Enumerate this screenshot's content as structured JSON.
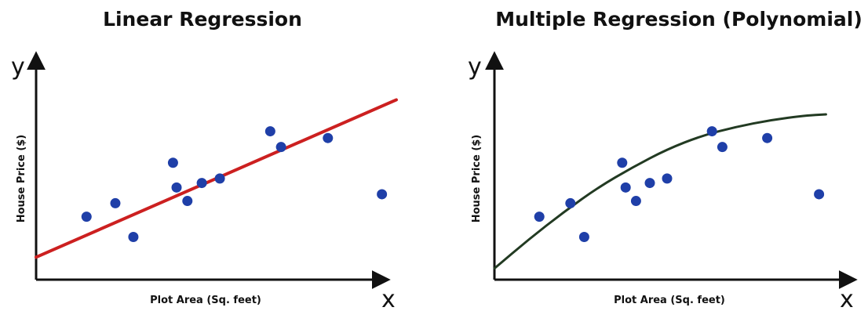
{
  "chart_data": [
    {
      "type": "scatter",
      "title": "Linear Regression",
      "xlabel": "Plot Area (Sq. feet)",
      "ylabel": "House Price ($)",
      "x_axis_letter": "x",
      "y_axis_letter": "y",
      "xlim": [
        0,
        10
      ],
      "ylim": [
        0,
        10
      ],
      "grid": false,
      "legend": "none",
      "point_color": "#1f3fa8",
      "fit_color": "#cc2020",
      "fit_type": "linear",
      "points": [
        {
          "x": 1.4,
          "y": 2.8
        },
        {
          "x": 2.2,
          "y": 3.4
        },
        {
          "x": 2.7,
          "y": 1.9
        },
        {
          "x": 3.8,
          "y": 5.2
        },
        {
          "x": 3.9,
          "y": 4.1
        },
        {
          "x": 4.2,
          "y": 3.5
        },
        {
          "x": 4.6,
          "y": 4.3
        },
        {
          "x": 5.1,
          "y": 4.5
        },
        {
          "x": 6.5,
          "y": 6.6
        },
        {
          "x": 6.8,
          "y": 5.9
        },
        {
          "x": 8.1,
          "y": 6.3
        },
        {
          "x": 9.6,
          "y": 3.8
        }
      ],
      "fit_line": [
        {
          "x": 0,
          "y": 1.0
        },
        {
          "x": 10,
          "y": 8.0
        }
      ]
    },
    {
      "type": "scatter",
      "title": "Multiple Regression (Polynomial)",
      "xlabel": "Plot Area (Sq. feet)",
      "ylabel": "House Price ($)",
      "x_axis_letter": "x",
      "y_axis_letter": "y",
      "xlim": [
        0,
        10
      ],
      "ylim": [
        0,
        10
      ],
      "grid": false,
      "legend": "none",
      "point_color": "#1f3fa8",
      "fit_color": "#223a22",
      "fit_type": "polynomial",
      "points": [
        {
          "x": 1.3,
          "y": 2.8
        },
        {
          "x": 2.2,
          "y": 3.4
        },
        {
          "x": 2.6,
          "y": 1.9
        },
        {
          "x": 3.7,
          "y": 5.2
        },
        {
          "x": 3.8,
          "y": 4.1
        },
        {
          "x": 4.1,
          "y": 3.5
        },
        {
          "x": 4.5,
          "y": 4.3
        },
        {
          "x": 5.0,
          "y": 4.5
        },
        {
          "x": 6.3,
          "y": 6.6
        },
        {
          "x": 6.6,
          "y": 5.9
        },
        {
          "x": 7.9,
          "y": 6.3
        },
        {
          "x": 9.4,
          "y": 3.8
        }
      ],
      "fit_curve": [
        {
          "x": 0,
          "y": 0.5
        },
        {
          "x": 1,
          "y": 1.8
        },
        {
          "x": 2,
          "y": 3.0
        },
        {
          "x": 3,
          "y": 4.1
        },
        {
          "x": 4,
          "y": 5.0
        },
        {
          "x": 5,
          "y": 5.8
        },
        {
          "x": 6,
          "y": 6.4
        },
        {
          "x": 7,
          "y": 6.8
        },
        {
          "x": 8,
          "y": 7.1
        },
        {
          "x": 9,
          "y": 7.3
        },
        {
          "x": 9.6,
          "y": 7.35
        }
      ]
    }
  ]
}
